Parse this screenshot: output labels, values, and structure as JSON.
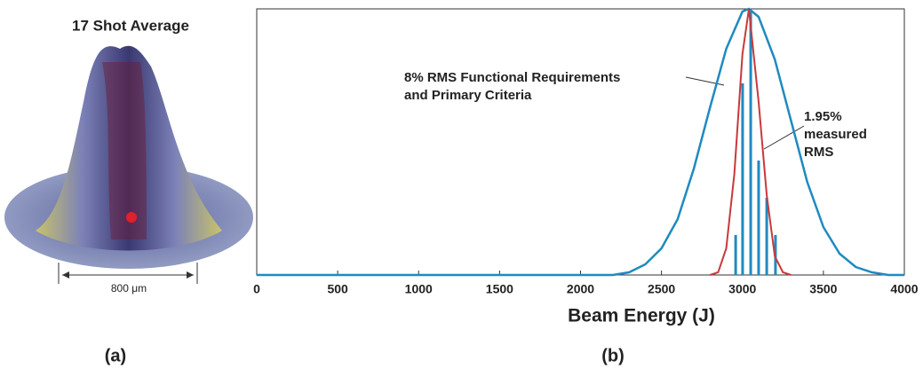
{
  "panel_a": {
    "title": "17 Shot Average",
    "scale_label": "800 μm",
    "label": "(a)"
  },
  "chart_data": {
    "type": "line",
    "panel_label": "(b)",
    "x_label": "Beam Energy (J)",
    "xlim": [
      0,
      4000
    ],
    "xticks": [
      0,
      500,
      1000,
      1500,
      2000,
      2500,
      3000,
      3500,
      4000
    ],
    "ylim": [
      0,
      1
    ],
    "series": [
      {
        "label_lines": [
          "8% RMS Functional Requirements",
          "and Primary Criteria"
        ],
        "color": "#1f8ac0",
        "kind": "line",
        "x": [
          0,
          1000,
          2000,
          2100,
          2200,
          2300,
          2400,
          2500,
          2600,
          2700,
          2800,
          2900,
          3000,
          3040,
          3100,
          3200,
          3300,
          3400,
          3500,
          3600,
          3700,
          3800,
          3900,
          4000
        ],
        "values": [
          0,
          0,
          0,
          0,
          0,
          0.01,
          0.04,
          0.1,
          0.21,
          0.4,
          0.63,
          0.85,
          0.99,
          1,
          0.97,
          0.81,
          0.58,
          0.35,
          0.18,
          0.08,
          0.03,
          0.01,
          0,
          0
        ]
      },
      {
        "label_lines": [
          "1.95%",
          "measured",
          "RMS"
        ],
        "color": "#c8393c",
        "kind": "line",
        "x": [
          2800,
          2850,
          2900,
          2950,
          3000,
          3040,
          3100,
          3150,
          3200,
          3250,
          3300
        ],
        "values": [
          0,
          0.01,
          0.1,
          0.38,
          0.83,
          1,
          0.65,
          0.3,
          0.07,
          0.01,
          0
        ]
      },
      {
        "color": "#1f8ac0",
        "kind": "bar",
        "x": [
          2958,
          3001,
          3051,
          3100,
          3150,
          3204
        ],
        "values": [
          0.15,
          0.72,
          0.99,
          0.43,
          0.29,
          0.15
        ]
      }
    ]
  }
}
